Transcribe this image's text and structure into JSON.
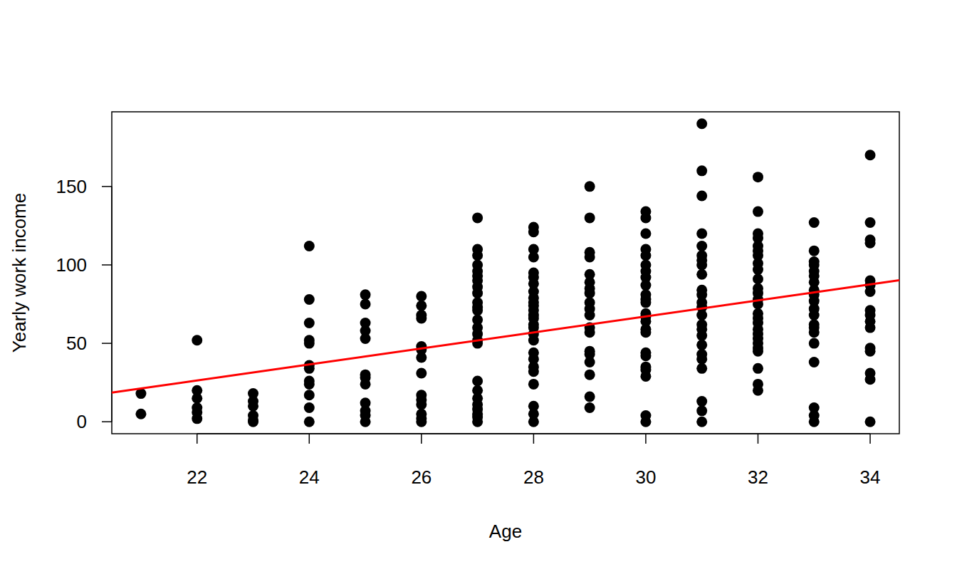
{
  "chart_data": {
    "type": "scatter",
    "x_label": "Age",
    "y_label": "Yearly work income",
    "xlim": [
      20.48,
      34.52
    ],
    "ylim": [
      -7.6,
      197.6
    ],
    "xticks": [
      22,
      24,
      26,
      28,
      30,
      32,
      34
    ],
    "yticks": [
      0,
      50,
      100,
      150
    ],
    "grid": false,
    "series": [
      {
        "type": "scatter",
        "color": "#000000",
        "marker": "circle",
        "x": [
          21,
          21,
          22,
          22,
          22,
          22,
          22,
          22,
          23,
          23,
          23,
          23,
          23,
          23,
          24,
          24,
          24,
          24,
          24,
          24,
          24,
          24,
          24,
          24,
          24,
          24,
          25,
          25,
          25,
          25,
          25,
          25,
          25,
          25,
          25,
          25,
          25,
          25,
          26,
          26,
          26,
          26,
          26,
          26,
          26,
          26,
          26,
          26,
          26,
          26,
          26,
          26,
          27,
          27,
          27,
          27,
          27,
          27,
          27,
          27,
          27,
          27,
          27,
          27,
          27,
          27,
          27,
          27,
          27,
          27,
          27,
          27,
          27,
          27,
          27,
          27,
          27,
          28,
          28,
          28,
          28,
          28,
          28,
          28,
          28,
          28,
          28,
          28,
          28,
          28,
          28,
          28,
          28,
          28,
          28,
          28,
          28,
          28,
          28,
          28,
          28,
          28,
          28,
          29,
          29,
          29,
          29,
          29,
          29,
          29,
          29,
          29,
          29,
          29,
          29,
          29,
          29,
          29,
          29,
          29,
          29,
          29,
          30,
          30,
          30,
          30,
          30,
          30,
          30,
          30,
          30,
          30,
          30,
          30,
          30,
          30,
          30,
          30,
          30,
          30,
          30,
          30,
          30,
          30,
          30,
          30,
          31,
          31,
          31,
          31,
          31,
          31,
          31,
          31,
          31,
          31,
          31,
          31,
          31,
          31,
          31,
          31,
          31,
          31,
          31,
          31,
          31,
          31,
          31,
          31,
          32,
          32,
          32,
          32,
          32,
          32,
          32,
          32,
          32,
          32,
          32,
          32,
          32,
          32,
          32,
          32,
          32,
          32,
          32,
          32,
          32,
          32,
          32,
          32,
          32,
          32,
          33,
          33,
          33,
          33,
          33,
          33,
          33,
          33,
          33,
          33,
          33,
          33,
          33,
          33,
          33,
          33,
          33,
          33,
          33,
          33,
          34,
          34,
          34,
          34,
          34,
          34,
          34,
          34,
          34,
          34,
          34,
          34,
          34,
          34,
          34,
          34
        ],
        "values": [
          18,
          5,
          52,
          20,
          15,
          9,
          6,
          2,
          18,
          13,
          10,
          4,
          1,
          0,
          112,
          78,
          63,
          52,
          50,
          36,
          34,
          26,
          24,
          17,
          9,
          0,
          81,
          75,
          63,
          58,
          53,
          30,
          28,
          24,
          12,
          7,
          4,
          0,
          80,
          74,
          68,
          66,
          48,
          46,
          41,
          31,
          17,
          14,
          11,
          5,
          2,
          0,
          130,
          110,
          106,
          100,
          96,
          93,
          90,
          86,
          82,
          76,
          73,
          71,
          65,
          60,
          56,
          52,
          50,
          26,
          20,
          15,
          11,
          8,
          5,
          3,
          0,
          124,
          121,
          110,
          105,
          95,
          92,
          88,
          83,
          79,
          76,
          74,
          71,
          68,
          66,
          62,
          60,
          56,
          52,
          44,
          40,
          35,
          32,
          24,
          10,
          5,
          0,
          150,
          130,
          108,
          105,
          94,
          89,
          85,
          82,
          76,
          72,
          68,
          60,
          57,
          45,
          43,
          38,
          30,
          16,
          9,
          134,
          130,
          120,
          110,
          106,
          100,
          96,
          92,
          87,
          81,
          78,
          76,
          69,
          67,
          64,
          59,
          57,
          44,
          42,
          35,
          33,
          29,
          4,
          0,
          190,
          160,
          144,
          120,
          112,
          106,
          103,
          100,
          94,
          84,
          81,
          76,
          73,
          68,
          62,
          59,
          55,
          49,
          43,
          40,
          34,
          13,
          7,
          0,
          156,
          134,
          120,
          117,
          112,
          109,
          106,
          101,
          97,
          91,
          85,
          82,
          78,
          75,
          69,
          66,
          63,
          59,
          56,
          53,
          50,
          47,
          45,
          34,
          24,
          20,
          127,
          109,
          102,
          100,
          96,
          93,
          89,
          84,
          81,
          77,
          72,
          68,
          62,
          60,
          57,
          50,
          38,
          9,
          4,
          0,
          170,
          127,
          116,
          114,
          90,
          87,
          83,
          71,
          68,
          64,
          60,
          47,
          45,
          31,
          27,
          0
        ]
      },
      {
        "type": "line",
        "color": "#ff0000",
        "line_style": "solid",
        "x": [
          20.48,
          34.52
        ],
        "values": [
          18.6,
          90.2
        ]
      }
    ]
  }
}
